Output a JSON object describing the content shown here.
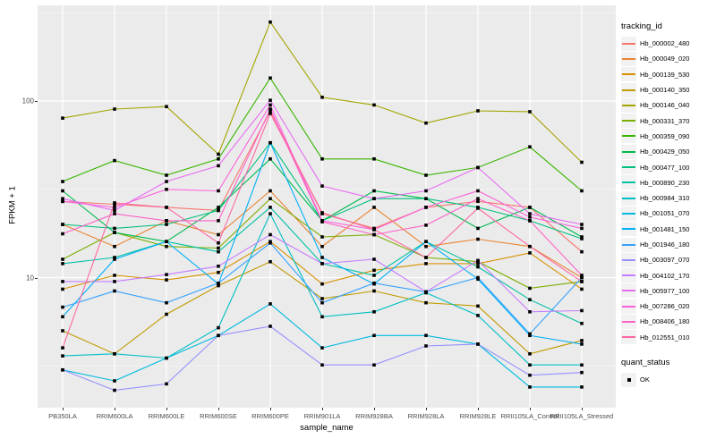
{
  "figure": {
    "panel_bg": "#EBEBEB",
    "grid_major_color": "#FFFFFF",
    "grid_minor_color": "#F5F5F5",
    "tick_text_color": "#4D4D4D",
    "marker_color": "#000000"
  },
  "legend": {
    "tracking_title": "tracking_id",
    "quant_title": "quant_status",
    "quant_items": [
      {
        "label": "OK"
      }
    ]
  },
  "chart_data": {
    "type": "line",
    "title": "",
    "xlabel": "sample_name",
    "ylabel": "FPKM + 1",
    "y_scale": "log10",
    "ylim": [
      1.8,
      350
    ],
    "y_major_ticks": [
      {
        "value": 10,
        "label": "10"
      },
      {
        "value": 100,
        "label": "100"
      }
    ],
    "y_minor_ticks": [
      3.162,
      31.62,
      316.2
    ],
    "grid": true,
    "legend_position": "right",
    "marker": "black-square",
    "quant_status": "OK",
    "categories": [
      "PB350LA",
      "RRIM600LA",
      "RRIM600LE",
      "RRIM600SE",
      "RRIM600PE",
      "RRIM901LA",
      "RRIM928BA",
      "RRIM928LA",
      "RRIM928LE",
      "RRII105LA_Control",
      "RRII105LA_Stressed"
    ],
    "series": [
      {
        "name": "Hb_000002_480",
        "color": "#F8766D",
        "values": [
          27,
          26,
          25,
          24,
          88,
          23,
          19,
          25,
          27,
          25,
          14
        ]
      },
      {
        "name": "Hb_000049_020",
        "color": "#EA8331",
        "values": [
          20,
          15,
          21,
          17.5,
          31,
          15,
          25,
          15,
          16.5,
          15,
          10
        ]
      },
      {
        "name": "Hb_000139_530",
        "color": "#D89000",
        "values": [
          8.6,
          10.3,
          9.7,
          10.7,
          16,
          9.2,
          11,
          12,
          12,
          13.8,
          8.6
        ]
      },
      {
        "name": "Hb_000140_350",
        "color": "#C09B00",
        "values": [
          5.0,
          3.7,
          6.2,
          9.0,
          12.3,
          7.6,
          8.4,
          7.2,
          6.9,
          3.7,
          4.4
        ]
      },
      {
        "name": "Hb_000146_040",
        "color": "#A3A500",
        "values": [
          80,
          90,
          93,
          50,
          280,
          105,
          95,
          75,
          88,
          87,
          45
        ]
      },
      {
        "name": "Hb_000331_370",
        "color": "#7CAE00",
        "values": [
          12.7,
          18,
          15,
          14.7,
          28,
          17,
          17.5,
          13,
          12.3,
          8.7,
          9.5
        ]
      },
      {
        "name": "Hb_000359_090",
        "color": "#39B600",
        "values": [
          35,
          46,
          38,
          47,
          135,
          47,
          47,
          38,
          42,
          55,
          31
        ]
      },
      {
        "name": "Hb_000429_050",
        "color": "#00BB4E",
        "values": [
          31,
          18,
          16,
          25,
          47,
          21,
          31,
          28,
          19,
          25,
          17
        ]
      },
      {
        "name": "Hb_000477_100",
        "color": "#00BF7D",
        "values": [
          20,
          19,
          20,
          24,
          58,
          21,
          28,
          28,
          25,
          21,
          16.6
        ]
      },
      {
        "name": "Hb_000890_230",
        "color": "#00C1A3",
        "values": [
          12,
          13,
          16,
          14,
          25,
          12,
          10.3,
          16,
          11.5,
          7.5,
          5.5
        ]
      },
      {
        "name": "Hb_000984_310",
        "color": "#00BFC4",
        "values": [
          3.6,
          3.7,
          3.5,
          5.2,
          23,
          6.0,
          6.4,
          8.2,
          6.1,
          3.2,
          3.2
        ]
      },
      {
        "name": "Hb_001051_070",
        "color": "#00BAE0",
        "values": [
          3.0,
          2.6,
          3.5,
          4.7,
          7.1,
          4.0,
          4.7,
          4.7,
          4.2,
          2.4,
          2.4
        ]
      },
      {
        "name": "Hb_001481_150",
        "color": "#00B0F6",
        "values": [
          6.0,
          12.7,
          16,
          9.2,
          58,
          13,
          9.2,
          16,
          9.8,
          4.7,
          4.2
        ]
      },
      {
        "name": "Hb_001946_180",
        "color": "#35A2FF",
        "values": [
          6.8,
          8.4,
          7.2,
          9.3,
          15.7,
          7.2,
          9.3,
          8.3,
          10,
          4.8,
          10
        ]
      },
      {
        "name": "Hb_003097_070",
        "color": "#9590FF",
        "values": [
          3.0,
          2.3,
          2.5,
          4.7,
          5.3,
          3.2,
          3.2,
          4.1,
          4.2,
          2.8,
          2.9
        ]
      },
      {
        "name": "Hb_004102_170",
        "color": "#C77CFF",
        "values": [
          9.5,
          9.5,
          10.4,
          11.6,
          17.5,
          12,
          12.7,
          8.3,
          12.5,
          6.4,
          6.5
        ]
      },
      {
        "name": "Hb_005977_100",
        "color": "#E76BF3",
        "values": [
          28,
          24,
          35,
          43,
          101,
          33,
          28,
          31,
          42,
          23,
          20
        ]
      },
      {
        "name": "Hb_007286_020",
        "color": "#FA62DB",
        "values": [
          27,
          25,
          31.6,
          31,
          95,
          21,
          18.7,
          25,
          31,
          22,
          19
        ]
      },
      {
        "name": "Hb_008406_180",
        "color": "#FF61C9",
        "values": [
          17.7,
          23,
          21,
          21,
          90,
          20.7,
          17.5,
          19.8,
          28,
          21,
          10.3
        ]
      },
      {
        "name": "Hb_012551_010",
        "color": "#FF67A4",
        "values": [
          4.0,
          26.5,
          25,
          15.7,
          85,
          23.3,
          18.7,
          13,
          24.7,
          15,
          9.5
        ]
      }
    ]
  }
}
